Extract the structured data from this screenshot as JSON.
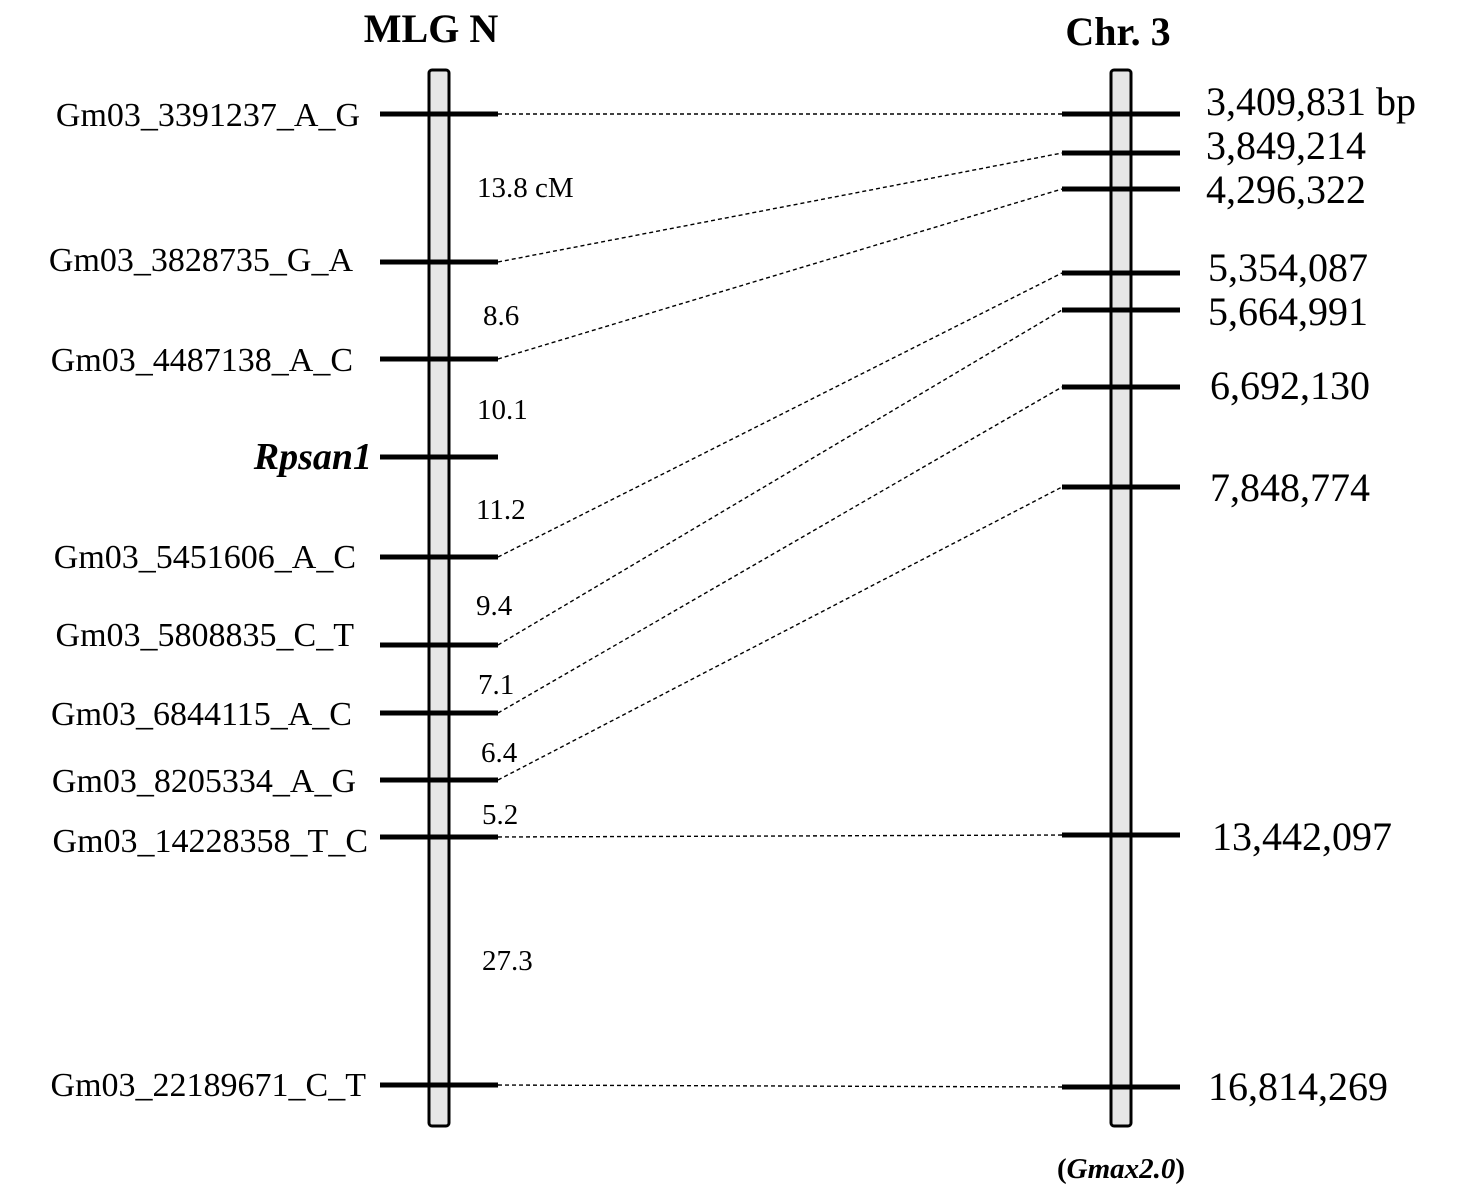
{
  "linkage_map": {
    "title": "MLG N",
    "markers": [
      {
        "name": "Gm03_3391237_A_G",
        "kind": "marker"
      },
      {
        "name": "Gm03_3828735_G_A",
        "kind": "marker"
      },
      {
        "name": "Gm03_4487138_A_C",
        "kind": "marker"
      },
      {
        "name": "Rpsan1",
        "kind": "gene"
      },
      {
        "name": "Gm03_5451606_A_C",
        "kind": "marker"
      },
      {
        "name": "Gm03_5808835_C_T",
        "kind": "marker"
      },
      {
        "name": "Gm03_6844115_A_C",
        "kind": "marker"
      },
      {
        "name": "Gm03_8205334_A_G",
        "kind": "marker"
      },
      {
        "name": "Gm03_14228358_T_C",
        "kind": "marker"
      },
      {
        "name": "Gm03_22189671_C_T",
        "kind": "marker"
      }
    ],
    "intervals": [
      "13.8 cM",
      "8.6",
      "10.1",
      "11.2",
      "9.4",
      "7.1",
      "6.4",
      "5.2",
      "27.3"
    ]
  },
  "physical_map": {
    "title": "Chr. 3",
    "positions": [
      "3,409,831 bp",
      "3,849,214",
      "4,296,322",
      "5,354,087",
      "5,664,991",
      "6,692,130",
      "7,848,774",
      "13,442,097",
      "16,814,269"
    ],
    "assembly_open": "(",
    "assembly_name": "Gmax2.0",
    "assembly_close": ")"
  },
  "links": [
    {
      "marker": 0,
      "position": 0
    },
    {
      "marker": 1,
      "position": 1
    },
    {
      "marker": 2,
      "position": 2
    },
    {
      "marker": 4,
      "position": 3
    },
    {
      "marker": 5,
      "position": 4
    },
    {
      "marker": 6,
      "position": 5
    },
    {
      "marker": 7,
      "position": 6
    },
    {
      "marker": 8,
      "position": 7
    },
    {
      "marker": 9,
      "position": 8
    }
  ],
  "colors": {
    "bar_fill": "#e6e6e6",
    "stroke": "#000000"
  }
}
